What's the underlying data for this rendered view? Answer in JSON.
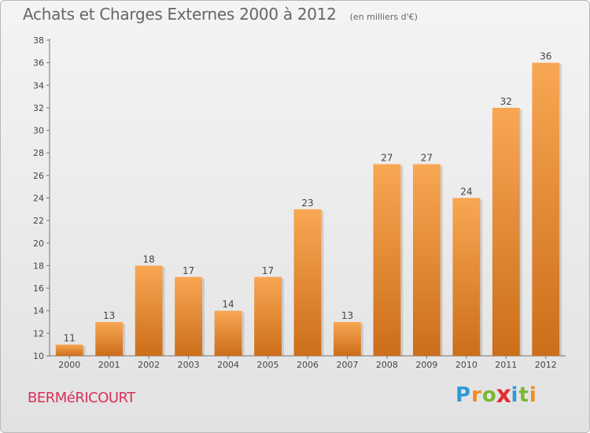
{
  "colors": {
    "bar_light": "#f8a753",
    "bar_dark": "#cc6e1a",
    "axis": "#777777",
    "grid": "#cfcfcf",
    "commune": "#d9325a"
  },
  "logo": {
    "text": "Proxiti",
    "letters": [
      "P",
      "r",
      "o",
      "x",
      "i",
      "t",
      "i"
    ],
    "letter_colors": [
      "#2f9ad5",
      "#f28c1e",
      "#7ab833",
      "#e22f33",
      "#2f9ad5",
      "#7ab833",
      "#f28c1e"
    ]
  },
  "commune": "BERMéRICOURT",
  "chart_data": {
    "type": "bar",
    "title": "Achats et Charges Externes 2000 à 2012",
    "subtitle": "(en milliers d'€)",
    "xlabel": "",
    "ylabel": "",
    "categories": [
      "2000",
      "2001",
      "2002",
      "2003",
      "2004",
      "2005",
      "2006",
      "2007",
      "2008",
      "2009",
      "2010",
      "2011",
      "2012"
    ],
    "values": [
      11,
      13,
      18,
      17,
      14,
      17,
      23,
      13,
      27,
      27,
      24,
      32,
      36
    ],
    "ylim": [
      10,
      38
    ],
    "yticks": [
      "10",
      "12",
      "14",
      "16",
      "18",
      "20",
      "22",
      "24",
      "26",
      "28",
      "30",
      "32",
      "34",
      "36",
      "38"
    ],
    "grid": false,
    "legend": "none"
  }
}
